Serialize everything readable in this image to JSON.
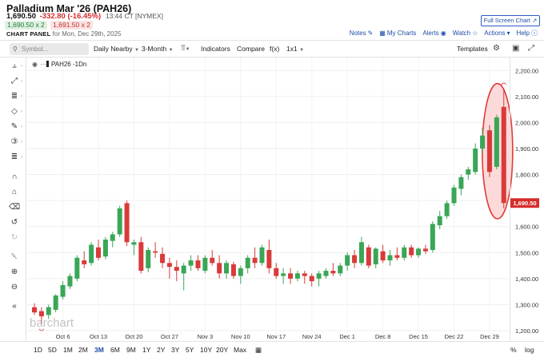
{
  "header": {
    "title": "Palladium Mar '26 (PAH26)",
    "last": "1,690.50",
    "change": "-332.80 (-16.45%)",
    "time": "13:44 CT [NYMEX]",
    "bid": "1,690.50 x 2",
    "ask": "1,691.50 x 2",
    "panel_label": "CHART PANEL",
    "panel_date": "for Mon, Dec 29th, 2025",
    "fullscreen": "Full Screen Chart",
    "links": {
      "notes": "Notes",
      "mycharts": "My Charts",
      "alerts": "Alerts",
      "watch": "Watch",
      "actions": "Actions",
      "help": "Help"
    }
  },
  "toolbar": {
    "symbol_placeholder": "Symbol...",
    "aggregation": "Daily Nearby",
    "period": "3-Month",
    "indicators": "Indicators",
    "compare": "Compare",
    "fx": "f(x)",
    "layout": "1x1",
    "templates": "Templates"
  },
  "study_label": "PAH26 -1Dn",
  "watermark": "barchart",
  "colors": {
    "up": "#3aa657",
    "down": "#d93a3a",
    "price_tag": "#d62d2d",
    "highlight_fill": "#fbd3d3",
    "highlight_stroke": "#e03b3b",
    "link": "#1d4da8"
  },
  "chart_data": {
    "type": "candlestick",
    "ylim": [
      1160,
      2250
    ],
    "yticks": [
      1200,
      1300,
      1400,
      1500,
      1600,
      1700,
      1800,
      1900,
      2000,
      2100,
      2200
    ],
    "ytick_labels": [
      "1,200.00",
      "1,300.00",
      "1,400.00",
      "1,500.00",
      "1,600.00",
      "1,700.00",
      "1,800.00",
      "1,900.00",
      "2,000.00",
      "2,100.00",
      "2,200.00"
    ],
    "xticks": [
      "Oct 6",
      "Oct 13",
      "Oct 20",
      "Oct 27",
      "Nov 3",
      "Nov 10",
      "Nov 17",
      "Nov 24",
      "Dec 1",
      "Dec 8",
      "Dec 15",
      "Dec 22",
      "Dec 29"
    ],
    "last_price": 1690.5,
    "last_price_label": "1,690.50",
    "candles": [
      {
        "o": 1290,
        "h": 1305,
        "l": 1260,
        "c": 1270
      },
      {
        "o": 1275,
        "h": 1290,
        "l": 1225,
        "c": 1255
      },
      {
        "o": 1260,
        "h": 1300,
        "l": 1245,
        "c": 1290
      },
      {
        "o": 1280,
        "h": 1340,
        "l": 1270,
        "c": 1335
      },
      {
        "o": 1330,
        "h": 1390,
        "l": 1320,
        "c": 1375
      },
      {
        "o": 1370,
        "h": 1420,
        "l": 1360,
        "c": 1410
      },
      {
        "o": 1400,
        "h": 1490,
        "l": 1390,
        "c": 1480
      },
      {
        "o": 1470,
        "h": 1505,
        "l": 1440,
        "c": 1455
      },
      {
        "o": 1460,
        "h": 1540,
        "l": 1450,
        "c": 1530
      },
      {
        "o": 1520,
        "h": 1550,
        "l": 1470,
        "c": 1480
      },
      {
        "o": 1485,
        "h": 1560,
        "l": 1475,
        "c": 1550
      },
      {
        "o": 1545,
        "h": 1580,
        "l": 1520,
        "c": 1570
      },
      {
        "o": 1570,
        "h": 1680,
        "l": 1560,
        "c": 1670
      },
      {
        "o": 1690,
        "h": 1700,
        "l": 1525,
        "c": 1540
      },
      {
        "o": 1530,
        "h": 1550,
        "l": 1490,
        "c": 1540
      },
      {
        "o": 1540,
        "h": 1560,
        "l": 1420,
        "c": 1430
      },
      {
        "o": 1440,
        "h": 1520,
        "l": 1425,
        "c": 1510
      },
      {
        "o": 1505,
        "h": 1540,
        "l": 1480,
        "c": 1500
      },
      {
        "o": 1495,
        "h": 1520,
        "l": 1440,
        "c": 1460
      },
      {
        "o": 1460,
        "h": 1480,
        "l": 1400,
        "c": 1445
      },
      {
        "o": 1445,
        "h": 1470,
        "l": 1390,
        "c": 1430
      },
      {
        "o": 1420,
        "h": 1460,
        "l": 1355,
        "c": 1450
      },
      {
        "o": 1450,
        "h": 1490,
        "l": 1430,
        "c": 1470
      },
      {
        "o": 1470,
        "h": 1490,
        "l": 1430,
        "c": 1440
      },
      {
        "o": 1430,
        "h": 1490,
        "l": 1420,
        "c": 1480
      },
      {
        "o": 1480,
        "h": 1510,
        "l": 1450,
        "c": 1460
      },
      {
        "o": 1460,
        "h": 1490,
        "l": 1400,
        "c": 1420
      },
      {
        "o": 1420,
        "h": 1470,
        "l": 1400,
        "c": 1460
      },
      {
        "o": 1455,
        "h": 1465,
        "l": 1400,
        "c": 1410
      },
      {
        "o": 1410,
        "h": 1450,
        "l": 1380,
        "c": 1440
      },
      {
        "o": 1440,
        "h": 1490,
        "l": 1420,
        "c": 1480
      },
      {
        "o": 1480,
        "h": 1520,
        "l": 1440,
        "c": 1460
      },
      {
        "o": 1460,
        "h": 1530,
        "l": 1450,
        "c": 1520
      },
      {
        "o": 1510,
        "h": 1550,
        "l": 1420,
        "c": 1440
      },
      {
        "o": 1440,
        "h": 1460,
        "l": 1400,
        "c": 1410
      },
      {
        "o": 1410,
        "h": 1440,
        "l": 1380,
        "c": 1420
      },
      {
        "o": 1420,
        "h": 1440,
        "l": 1380,
        "c": 1400
      },
      {
        "o": 1400,
        "h": 1430,
        "l": 1390,
        "c": 1420
      },
      {
        "o": 1420,
        "h": 1430,
        "l": 1380,
        "c": 1410
      },
      {
        "o": 1410,
        "h": 1420,
        "l": 1370,
        "c": 1390
      },
      {
        "o": 1400,
        "h": 1430,
        "l": 1370,
        "c": 1420
      },
      {
        "o": 1410,
        "h": 1440,
        "l": 1400,
        "c": 1430
      },
      {
        "o": 1430,
        "h": 1460,
        "l": 1410,
        "c": 1420
      },
      {
        "o": 1420,
        "h": 1460,
        "l": 1410,
        "c": 1450
      },
      {
        "o": 1450,
        "h": 1500,
        "l": 1430,
        "c": 1490
      },
      {
        "o": 1490,
        "h": 1510,
        "l": 1440,
        "c": 1460
      },
      {
        "o": 1460,
        "h": 1560,
        "l": 1450,
        "c": 1540
      },
      {
        "o": 1520,
        "h": 1530,
        "l": 1440,
        "c": 1450
      },
      {
        "o": 1455,
        "h": 1520,
        "l": 1440,
        "c": 1515
      },
      {
        "o": 1505,
        "h": 1530,
        "l": 1460,
        "c": 1470
      },
      {
        "o": 1470,
        "h": 1510,
        "l": 1450,
        "c": 1490
      },
      {
        "o": 1490,
        "h": 1520,
        "l": 1470,
        "c": 1480
      },
      {
        "o": 1480,
        "h": 1530,
        "l": 1470,
        "c": 1520
      },
      {
        "o": 1520,
        "h": 1530,
        "l": 1480,
        "c": 1490
      },
      {
        "o": 1490,
        "h": 1520,
        "l": 1480,
        "c": 1515
      },
      {
        "o": 1515,
        "h": 1530,
        "l": 1495,
        "c": 1505
      },
      {
        "o": 1510,
        "h": 1620,
        "l": 1500,
        "c": 1610
      },
      {
        "o": 1605,
        "h": 1660,
        "l": 1590,
        "c": 1640
      },
      {
        "o": 1640,
        "h": 1700,
        "l": 1630,
        "c": 1690
      },
      {
        "o": 1690,
        "h": 1760,
        "l": 1680,
        "c": 1750
      },
      {
        "o": 1745,
        "h": 1800,
        "l": 1720,
        "c": 1790
      },
      {
        "o": 1800,
        "h": 1830,
        "l": 1780,
        "c": 1820
      },
      {
        "o": 1810,
        "h": 1920,
        "l": 1800,
        "c": 1900
      },
      {
        "o": 1900,
        "h": 1980,
        "l": 1880,
        "c": 1950
      },
      {
        "o": 1970,
        "h": 1990,
        "l": 1790,
        "c": 1810
      },
      {
        "o": 1830,
        "h": 2030,
        "l": 1820,
        "c": 2020
      },
      {
        "o": 2060,
        "h": 2130,
        "l": 1670,
        "c": 1690.5
      }
    ]
  },
  "bottom": {
    "ranges": [
      "1D",
      "5D",
      "1M",
      "2M",
      "3M",
      "6M",
      "9M",
      "1Y",
      "2Y",
      "3Y",
      "5Y",
      "10Y",
      "20Y",
      "Max"
    ],
    "active_range": "3M",
    "percent": "%",
    "log": "log"
  }
}
